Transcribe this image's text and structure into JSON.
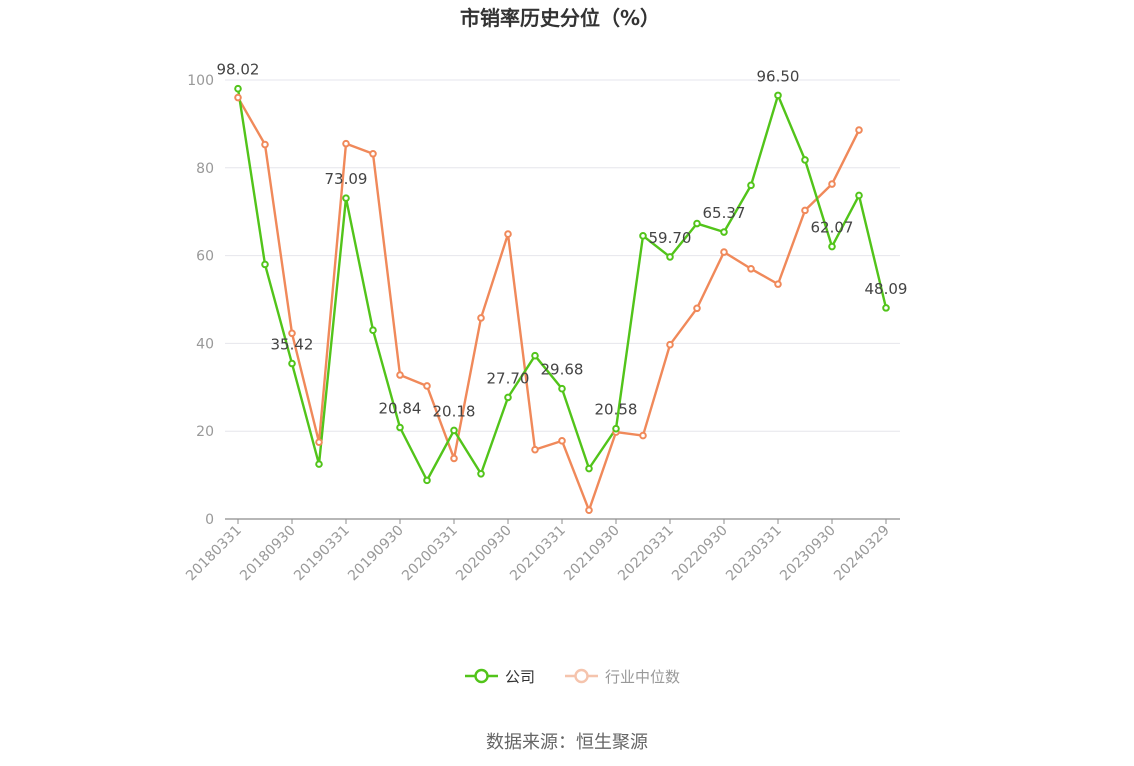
{
  "chart_data": {
    "type": "line",
    "title": "市销率历史分位（%）",
    "source": "数据来源：恒生聚源",
    "ylim": [
      0,
      100
    ],
    "yticks": [
      0,
      20,
      40,
      60,
      80,
      100
    ],
    "grid": true,
    "legend_position": "bottom",
    "x": [
      "20180331",
      "20180630",
      "20180930",
      "20181231",
      "20190331",
      "20190630",
      "20190930",
      "20191231",
      "20200331",
      "20200630",
      "20200930",
      "20201231",
      "20210331",
      "20210630",
      "20210930",
      "20211231",
      "20220331",
      "20220630",
      "20220930",
      "20221231",
      "20230331",
      "20230630",
      "20230930",
      "20231231",
      "20240329"
    ],
    "xticks": [
      "20180331",
      "20180930",
      "20190331",
      "20190930",
      "20200331",
      "20200930",
      "20210331",
      "20210930",
      "20220331",
      "20220930",
      "20230331",
      "20230930",
      "20240329"
    ],
    "series": [
      {
        "name": "公司",
        "color": "#52c41a",
        "values": [
          98.02,
          58.0,
          35.42,
          12.5,
          73.09,
          43.0,
          20.84,
          8.8,
          20.18,
          10.3,
          27.7,
          37.2,
          29.68,
          11.5,
          20.58,
          64.5,
          59.7,
          67.3,
          65.37,
          76.0,
          96.5,
          81.8,
          62.07,
          73.7,
          48.09
        ],
        "labels": [
          "98.02",
          "",
          "35.42",
          "",
          "73.09",
          "",
          "20.84",
          "",
          "20.18",
          "",
          "27.70",
          "",
          "29.68",
          "",
          "20.58",
          "",
          "59.70",
          "",
          "65.37",
          "",
          "96.50",
          "",
          "62.07",
          "",
          "48.09"
        ]
      },
      {
        "name": "行业中位数",
        "color": "#f0895a",
        "values": [
          96.0,
          85.3,
          42.3,
          17.5,
          85.5,
          83.2,
          32.8,
          30.3,
          13.8,
          45.8,
          64.9,
          15.8,
          17.8,
          2.0,
          19.8,
          19.0,
          39.7,
          48.0,
          60.8,
          57.0,
          53.5,
          70.3,
          76.3,
          88.6,
          null
        ]
      }
    ]
  }
}
